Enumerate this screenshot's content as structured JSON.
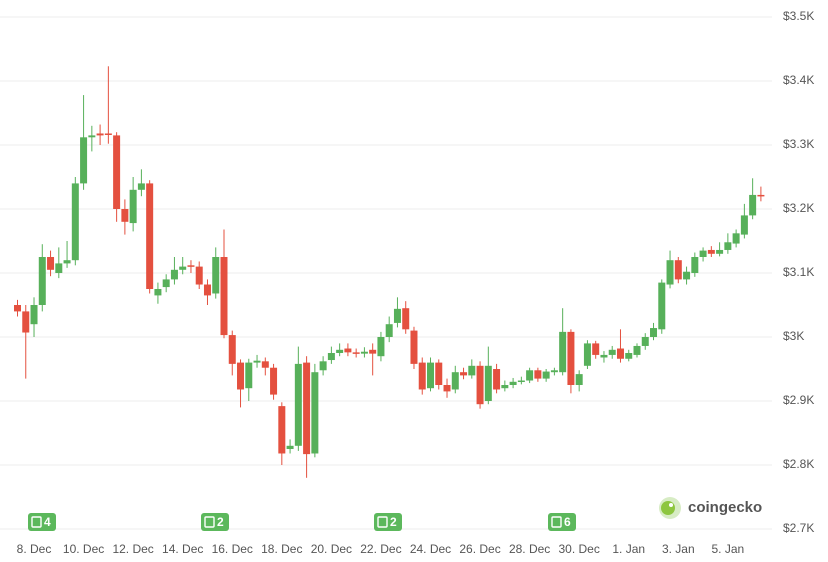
{
  "chart_data": {
    "type": "candlestick",
    "categories": [
      null,
      null,
      "8. Dec",
      null,
      null,
      null,
      null,
      null,
      "10. Dec",
      null,
      null,
      null,
      null,
      null,
      "12. Dec",
      null,
      null,
      null,
      null,
      null,
      "14. Dec",
      null,
      null,
      null,
      null,
      null,
      "16. Dec",
      null,
      null,
      null,
      null,
      null,
      "18. Dec",
      null,
      null,
      null,
      null,
      null,
      "20. Dec",
      null,
      null,
      null,
      null,
      null,
      "22. Dec",
      null,
      null,
      null,
      null,
      null,
      "24. Dec",
      null,
      null,
      null,
      null,
      null,
      "26. Dec",
      null,
      null,
      null,
      null,
      null,
      "28. Dec",
      null,
      null,
      null,
      null,
      null,
      "30. Dec",
      null,
      null,
      null,
      null,
      null,
      "1. Jan",
      null,
      null,
      null,
      null,
      null,
      "3. Jan",
      null,
      null,
      null,
      null,
      null,
      "5. Jan",
      null,
      null,
      null,
      null
    ],
    "open": [
      3050,
      3040,
      3020,
      3050,
      3125,
      3100,
      3115,
      3120,
      3240,
      3312,
      3318,
      3318,
      3315,
      3200,
      3178,
      3230,
      3240,
      3065,
      3078,
      3090,
      3105,
      3112,
      3110,
      3082,
      3068,
      3125,
      3003,
      2960,
      2920,
      2960,
      2962,
      2952,
      2892,
      2825,
      2830,
      2960,
      2818,
      2948,
      2964,
      2975,
      2982,
      2976,
      2974,
      2980,
      2970,
      3000,
      3022,
      3045,
      3010,
      2960,
      2920,
      2960,
      2925,
      2918,
      2945,
      2940,
      2955,
      2900,
      2950,
      2920,
      2925,
      2930,
      2932,
      2948,
      2935,
      2945,
      2945,
      3008,
      2925,
      2955,
      2990,
      2968,
      2972,
      2982,
      2966,
      2972,
      2986,
      3000,
      3012,
      3082,
      3120,
      3090,
      3100,
      3125,
      3136,
      3130,
      3136,
      3146,
      3160,
      3190,
      3222
    ],
    "high": [
      3058,
      3050,
      3062,
      3145,
      3135,
      3140,
      3150,
      3250,
      3378,
      3330,
      3332,
      3423,
      3320,
      3215,
      3250,
      3262,
      3245,
      3085,
      3098,
      3125,
      3125,
      3120,
      3118,
      3090,
      3140,
      3168,
      3010,
      2965,
      2966,
      2972,
      2968,
      2958,
      2898,
      2840,
      2985,
      2970,
      2958,
      2970,
      2985,
      2990,
      2990,
      2982,
      2984,
      2990,
      3008,
      3032,
      3062,
      3056,
      3016,
      2968,
      2968,
      2965,
      2935,
      2955,
      2952,
      2965,
      2962,
      2985,
      2958,
      2932,
      2936,
      2938,
      2952,
      2952,
      2950,
      2952,
      3045,
      3012,
      2948,
      2995,
      2994,
      2978,
      2986,
      3012,
      2980,
      2990,
      3006,
      3022,
      3090,
      3135,
      3125,
      3110,
      3132,
      3140,
      3142,
      3148,
      3162,
      3168,
      3208,
      3248,
      3235
    ],
    "low": [
      3032,
      2935,
      3000,
      3040,
      3095,
      3092,
      3108,
      3112,
      3230,
      3290,
      3300,
      3302,
      3180,
      3160,
      3165,
      3220,
      3068,
      3052,
      3070,
      3082,
      3098,
      3100,
      3075,
      3050,
      3060,
      2998,
      2940,
      2890,
      2900,
      2952,
      2940,
      2902,
      2800,
      2818,
      2822,
      2780,
      2812,
      2940,
      2958,
      2970,
      2970,
      2968,
      2968,
      2940,
      2962,
      2992,
      3015,
      3005,
      2950,
      2910,
      2915,
      2918,
      2905,
      2912,
      2934,
      2935,
      2888,
      2895,
      2912,
      2915,
      2920,
      2926,
      2928,
      2930,
      2930,
      2940,
      2940,
      2912,
      2915,
      2950,
      2966,
      2960,
      2966,
      2960,
      2962,
      2968,
      2980,
      2995,
      3005,
      3076,
      3084,
      3082,
      3094,
      3118,
      3125,
      3126,
      3130,
      3140,
      3154,
      3184,
      3212
    ],
    "close": [
      3040,
      3007,
      3050,
      3125,
      3105,
      3115,
      3120,
      3240,
      3312,
      3315,
      3315,
      3316,
      3200,
      3180,
      3230,
      3240,
      3075,
      3075,
      3090,
      3105,
      3110,
      3110,
      3082,
      3065,
      3125,
      3003,
      2958,
      2918,
      2960,
      2963,
      2952,
      2910,
      2818,
      2830,
      2958,
      2817,
      2945,
      2962,
      2975,
      2980,
      2976,
      2975,
      2977,
      2974,
      3000,
      3020,
      3044,
      3012,
      2958,
      2918,
      2960,
      2925,
      2915,
      2945,
      2940,
      2955,
      2895,
      2955,
      2918,
      2925,
      2930,
      2932,
      2948,
      2935,
      2946,
      2948,
      3008,
      2925,
      2942,
      2990,
      2972,
      2972,
      2980,
      2966,
      2975,
      2986,
      3000,
      3014,
      3085,
      3120,
      3090,
      3102,
      3125,
      3135,
      3130,
      3136,
      3148,
      3162,
      3190,
      3222,
      3220
    ],
    "up_color": "#57b05a",
    "down_color": "#e4503f",
    "ylim": [
      2700,
      3500
    ],
    "yticks": [
      {
        "value": 2700,
        "label": "$2.7K"
      },
      {
        "value": 2800,
        "label": "$2.8K"
      },
      {
        "value": 2900,
        "label": "$2.9K"
      },
      {
        "value": 3000,
        "label": "$3K"
      },
      {
        "value": 3100,
        "label": "$3.1K"
      },
      {
        "value": 3200,
        "label": "$3.2K"
      },
      {
        "value": 3300,
        "label": "$3.3K"
      },
      {
        "value": 3400,
        "label": "$3.4K"
      },
      {
        "value": 3500,
        "label": "$3.5K"
      }
    ],
    "grid": true,
    "annotations": [
      "4",
      "2",
      "2",
      "6"
    ],
    "watermark": "coingecko"
  }
}
